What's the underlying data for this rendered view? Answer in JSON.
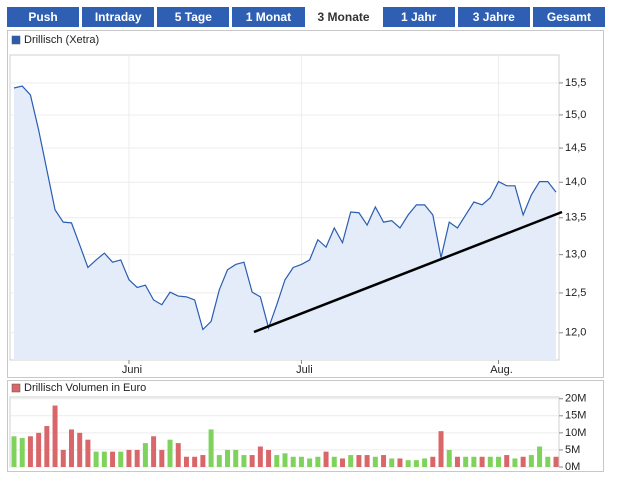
{
  "tabs": [
    "Push",
    "Intraday",
    "5 Tage",
    "1 Monat",
    "3 Monate",
    "1 Jahr",
    "3 Jahre",
    "Gesamt"
  ],
  "active_tab": 4,
  "chart_data": [
    {
      "type": "line",
      "log": true,
      "grid": true,
      "fill": "#e4ecfa",
      "categories": [
        null,
        null,
        null,
        null,
        null,
        null,
        null,
        null,
        null,
        null,
        null,
        null,
        null,
        null,
        "Juni",
        null,
        null,
        null,
        null,
        null,
        null,
        null,
        null,
        null,
        null,
        null,
        null,
        null,
        null,
        null,
        null,
        null,
        null,
        null,
        null,
        "Juli",
        null,
        null,
        null,
        null,
        null,
        null,
        null,
        null,
        null,
        null,
        null,
        null,
        null,
        null,
        null,
        null,
        null,
        null,
        null,
        null,
        null,
        null,
        null,
        "Aug.",
        null,
        null,
        null,
        null,
        null,
        null,
        null
      ],
      "series": [
        {
          "name": "Drillisch (Xetra)",
          "color": "#2a5db0",
          "values": [
            15.42,
            15.45,
            15.31,
            14.77,
            14.18,
            13.61,
            13.44,
            13.43,
            13.13,
            12.83,
            12.93,
            13.02,
            12.9,
            12.93,
            12.67,
            12.57,
            12.6,
            12.41,
            12.35,
            12.51,
            12.46,
            12.45,
            12.41,
            12.04,
            12.14,
            12.54,
            12.8,
            12.87,
            12.9,
            12.51,
            12.45,
            12.06,
            12.35,
            12.67,
            12.83,
            12.87,
            12.93,
            13.2,
            13.1,
            13.36,
            13.16,
            13.58,
            13.57,
            13.4,
            13.65,
            13.44,
            13.46,
            13.36,
            13.54,
            13.68,
            13.68,
            13.54,
            12.96,
            13.44,
            13.36,
            13.54,
            13.72,
            13.68,
            13.78,
            14.01,
            13.95,
            13.95,
            13.54,
            13.82,
            14.01,
            14.01,
            13.86
          ]
        }
      ],
      "ylim": [
        11.67,
        15.95
      ],
      "yticks": [
        {
          "value": 12,
          "label": "12,0"
        },
        {
          "value": 12.5,
          "label": "12,5"
        },
        {
          "value": 13,
          "label": "13,0"
        },
        {
          "value": 13.5,
          "label": "13,5"
        },
        {
          "value": 14,
          "label": "14,0"
        },
        {
          "value": 14.5,
          "label": "14,5"
        },
        {
          "value": 15,
          "label": "15,0"
        },
        {
          "value": 15.5,
          "label": "15,5"
        }
      ]
    },
    {
      "type": "bar",
      "grid": true,
      "up_color": "#7fd35c",
      "down_color": "#d9676a",
      "series": [
        {
          "name": "Drillisch Volumen in Euro",
          "color": "#d9676a",
          "values": [
            9,
            8.5,
            9,
            10,
            12,
            18,
            5,
            11,
            10,
            8,
            4.5,
            4.5,
            4.5,
            4.5,
            5,
            5,
            7,
            9,
            5,
            8,
            7,
            3,
            3,
            3.5,
            11,
            3.5,
            5,
            5,
            3.5,
            3.5,
            6,
            5,
            3.5,
            4,
            3,
            3,
            2.5,
            3,
            4.5,
            3,
            2.5,
            3.5,
            3.5,
            3.5,
            3,
            3.5,
            2.5,
            2.5,
            2,
            2,
            2.5,
            3,
            10.5,
            5,
            3,
            3,
            3,
            3,
            3,
            3,
            3.5,
            2.5,
            3,
            3.5,
            6,
            3,
            3
          ]
        }
      ],
      "ylim": [
        0,
        20.5
      ],
      "yticks": [
        {
          "value": 0,
          "label": "0M"
        },
        {
          "value": 5,
          "label": "5M"
        },
        {
          "value": 10,
          "label": "10M"
        },
        {
          "value": 15,
          "label": "15M"
        },
        {
          "value": 20,
          "label": "20M"
        }
      ]
    }
  ]
}
